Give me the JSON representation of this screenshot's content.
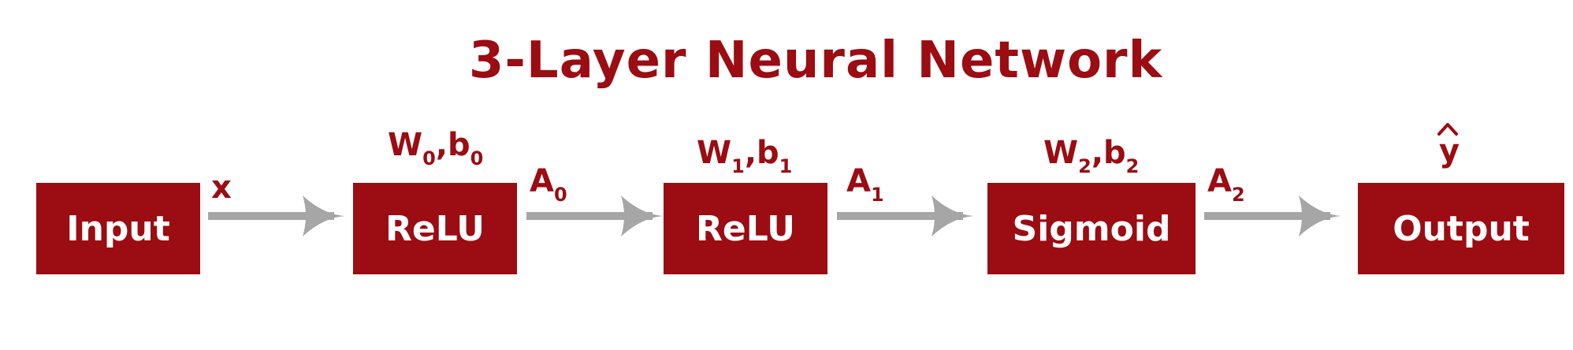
{
  "title": "3-Layer Neural Network",
  "boxes": {
    "input": "Input",
    "relu0": "ReLU",
    "relu1": "ReLU",
    "sigmoid": "Sigmoid",
    "output": "Output"
  },
  "edge_labels": {
    "x": "x",
    "a0": "A",
    "a0_sub": "0",
    "a1": "A",
    "a1_sub": "1",
    "a2": "A",
    "a2_sub": "2"
  },
  "param_labels": {
    "layer0": {
      "w": "W",
      "w_sub": "0",
      "sep": ",",
      "b": "b",
      "b_sub": "0"
    },
    "layer1": {
      "w": "W",
      "w_sub": "1",
      "sep": ",",
      "b": "b",
      "b_sub": "1"
    },
    "layer2": {
      "w": "W",
      "w_sub": "2",
      "sep": ",",
      "b": "b",
      "b_sub": "2"
    }
  },
  "output_label": "y",
  "colors": {
    "accent": "#9b0c13",
    "arrow": "#a6a6a6",
    "box_text": "#ffffff"
  }
}
